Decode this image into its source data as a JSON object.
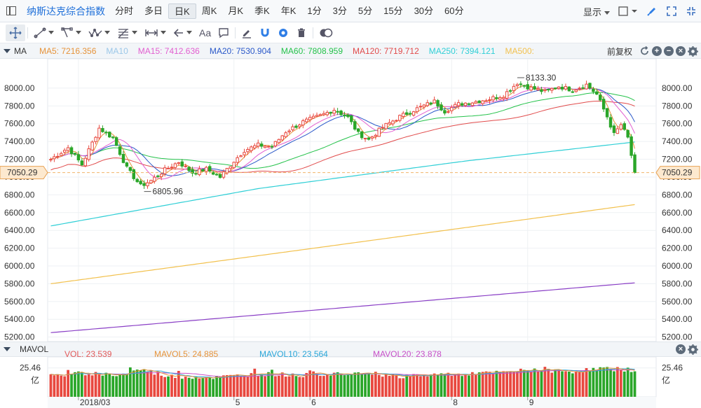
{
  "header": {
    "index_name": "纳斯达克综合指数",
    "periods": [
      "分时",
      "多日",
      "日K",
      "周K",
      "月K",
      "季K",
      "年K",
      "1分",
      "3分",
      "5分",
      "15分",
      "30分",
      "60分"
    ],
    "active_period": "日K",
    "display_label": "显示"
  },
  "toolbar": {
    "text_tool_label": "Aa",
    "icons": [
      "crosshair-icon",
      "line-segment-icon",
      "polyline-icon",
      "wave-icon",
      "fibonacci-icon",
      "measure-icon",
      "arrow-left-icon",
      "text-icon",
      "comment-icon",
      "pen-icon",
      "magnet-icon",
      "eye-icon",
      "trash-icon",
      "layers-icon"
    ]
  },
  "ma_legend": {
    "title": "MA",
    "items": [
      {
        "label": "MA5: 7216.356",
        "color": "#e6933a"
      },
      {
        "label": "MA10",
        "color": "#9bc7e8"
      },
      {
        "label": "MA15: 7412.636",
        "color": "#e25fd0"
      },
      {
        "label": "MA20: 7530.904",
        "color": "#2a58c9"
      },
      {
        "label": "MA60: 7808.959",
        "color": "#24c24a"
      },
      {
        "label": "MA120: 7719.712",
        "color": "#e14b4b"
      },
      {
        "label": "MA250: 7394.121",
        "color": "#2fcfd6"
      },
      {
        "label": "MA500:",
        "color": "#f2c14e"
      }
    ],
    "restore_label": "前复权"
  },
  "volume_legend": {
    "title": "MAVOL",
    "items": [
      {
        "label": "VOL: 23.539",
        "color": "#e25a5a"
      },
      {
        "label": "MAVOL5: 24.885",
        "color": "#e6933a"
      },
      {
        "label": "MAVOL10: 23.564",
        "color": "#2aa6d8"
      },
      {
        "label": "MAVOL20: 23.878",
        "color": "#c84fc8"
      }
    ],
    "axis_top_label": "25.46",
    "axis_unit_label": "亿"
  },
  "chart_data": {
    "type": "candlestick",
    "price_ticks": [
      "8000.00",
      "7800.00",
      "7600.00",
      "7400.00",
      "7200.00",
      "7000.00",
      "6800.00",
      "6600.00",
      "6400.00",
      "6200.00",
      "6000.00",
      "5800.00",
      "5600.00",
      "5400.00",
      "5200.00"
    ],
    "ylim": [
      5150,
      8330
    ],
    "current_price": "7050.29",
    "high_label": "8133.30",
    "low_label": "6805.96",
    "date_labels": [
      "2018/03",
      "5",
      "6",
      "8",
      "9"
    ],
    "date_label_bars": [
      8,
      53,
      75,
      116,
      138
    ],
    "bar_count": 170,
    "series_close_anchors": [
      [
        0,
        7200
      ],
      [
        5,
        7330
      ],
      [
        9,
        7140
      ],
      [
        14,
        7550
      ],
      [
        18,
        7440
      ],
      [
        22,
        7100
      ],
      [
        26,
        6900
      ],
      [
        29,
        6960
      ],
      [
        33,
        7080
      ],
      [
        37,
        7170
      ],
      [
        41,
        7050
      ],
      [
        45,
        7090
      ],
      [
        49,
        7000
      ],
      [
        53,
        7180
      ],
      [
        56,
        7300
      ],
      [
        60,
        7360
      ],
      [
        64,
        7340
      ],
      [
        68,
        7510
      ],
      [
        73,
        7620
      ],
      [
        78,
        7690
      ],
      [
        82,
        7760
      ],
      [
        86,
        7670
      ],
      [
        89,
        7490
      ],
      [
        92,
        7420
      ],
      [
        96,
        7560
      ],
      [
        101,
        7680
      ],
      [
        106,
        7770
      ],
      [
        111,
        7850
      ],
      [
        114,
        7740
      ],
      [
        118,
        7820
      ],
      [
        123,
        7850
      ],
      [
        127,
        7880
      ],
      [
        131,
        7920
      ],
      [
        135,
        8060
      ],
      [
        139,
        8000
      ],
      [
        143,
        7960
      ],
      [
        147,
        8020
      ],
      [
        151,
        7980
      ],
      [
        155,
        8040
      ],
      [
        158,
        7930
      ],
      [
        161,
        7680
      ],
      [
        163,
        7480
      ],
      [
        165,
        7590
      ],
      [
        167,
        7440
      ],
      [
        169,
        7050
      ]
    ],
    "volume_ylim": [
      0,
      29
    ],
    "volume_anchors": [
      [
        0,
        18
      ],
      [
        10,
        21
      ],
      [
        20,
        19
      ],
      [
        26,
        24
      ],
      [
        34,
        18
      ],
      [
        48,
        17
      ],
      [
        60,
        20
      ],
      [
        75,
        19
      ],
      [
        90,
        22
      ],
      [
        100,
        18
      ],
      [
        115,
        20
      ],
      [
        130,
        21
      ],
      [
        140,
        24
      ],
      [
        150,
        22
      ],
      [
        160,
        25
      ],
      [
        169,
        23.5
      ]
    ],
    "moving_average_lines": {
      "ma250": [
        [
          0,
          6450
        ],
        [
          60,
          6870
        ],
        [
          120,
          7180
        ],
        [
          169,
          7394
        ]
      ],
      "ma500": [
        [
          0,
          5800
        ],
        [
          80,
          6220
        ],
        [
          169,
          6690
        ]
      ],
      "ma_purple": [
        [
          0,
          5250
        ],
        [
          169,
          5810
        ]
      ]
    }
  }
}
